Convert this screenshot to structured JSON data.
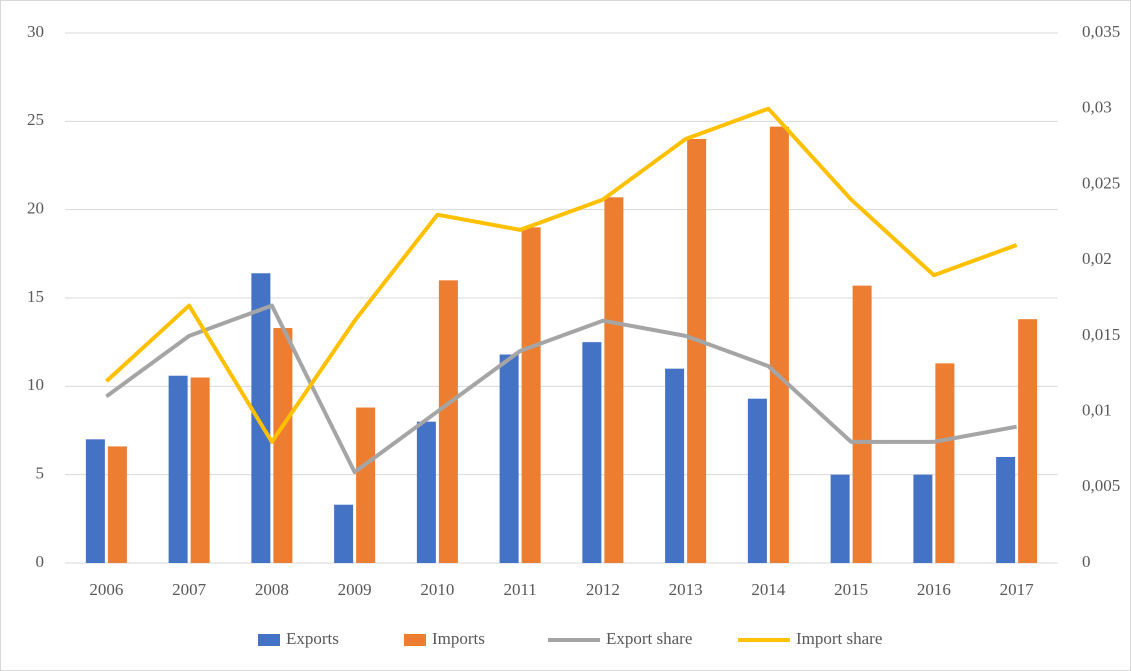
{
  "chart_data": {
    "type": "bar",
    "categories": [
      "2006",
      "2007",
      "2008",
      "2009",
      "2010",
      "2011",
      "2012",
      "2013",
      "2014",
      "2015",
      "2016",
      "2017"
    ],
    "series": [
      {
        "name": "Exports",
        "type": "bar",
        "color": "#4472c4",
        "values": [
          7.0,
          10.6,
          16.4,
          3.3,
          8.0,
          11.8,
          12.5,
          11.0,
          9.3,
          5.0,
          5.0,
          6.0
        ]
      },
      {
        "name": "Imports",
        "type": "bar",
        "color": "#ed7d31",
        "values": [
          6.6,
          10.5,
          13.3,
          8.8,
          16.0,
          19.0,
          20.7,
          24.0,
          24.7,
          15.7,
          11.3,
          13.8
        ]
      },
      {
        "name": "Export share",
        "type": "line",
        "axis": "y2",
        "color": "#a5a5a5",
        "values": [
          0.011,
          0.015,
          0.017,
          0.006,
          0.01,
          0.014,
          0.016,
          0.015,
          0.013,
          0.008,
          0.008,
          0.009
        ]
      },
      {
        "name": "Import share",
        "type": "line",
        "axis": "y2",
        "color": "#ffc000",
        "values": [
          0.012,
          0.017,
          0.008,
          0.016,
          0.023,
          0.022,
          0.024,
          0.028,
          0.03,
          0.024,
          0.019,
          0.021
        ]
      }
    ],
    "ylim": [
      0,
      30
    ],
    "yticks": [
      0,
      5,
      10,
      15,
      20,
      25,
      30
    ],
    "y2lim": [
      0,
      0.035
    ],
    "y2ticks": [
      0,
      {
        "value": 0.005,
        "label": "0,005"
      },
      {
        "value": 0.01,
        "label": "0,01"
      },
      {
        "value": 0.015,
        "label": "0,015"
      },
      {
        "value": 0.02,
        "label": "0,02"
      },
      {
        "value": 0.025,
        "label": "0,025"
      },
      {
        "value": 0.03,
        "label": "0,03"
      },
      {
        "value": 0.035,
        "label": "0,035"
      }
    ],
    "grid": true,
    "legend": "bottom"
  }
}
